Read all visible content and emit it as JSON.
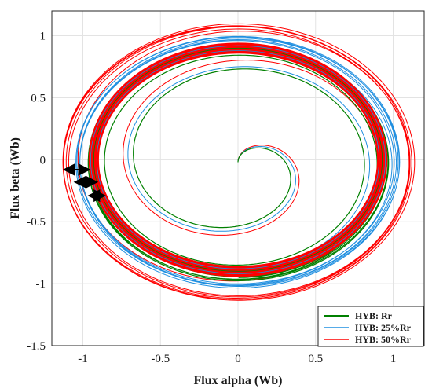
{
  "chart_data": {
    "type": "line",
    "title": "",
    "xlabel": "Flux alpha (Wb)",
    "ylabel": "Flux beta (Wb)",
    "xlim": [
      -1.2,
      1.2
    ],
    "ylim": [
      -1.5,
      1.2
    ],
    "x_ticks": [
      "-1",
      "-0.5",
      "0",
      "0.5",
      "1"
    ],
    "y_ticks": [
      "1",
      "0.5",
      "0",
      "-0.5",
      "-1",
      "-1.5"
    ],
    "grid": true,
    "legend_position": "bottom-right",
    "series": [
      {
        "name": "HYB: Rr",
        "color": "#008000",
        "start": [
          0,
          -0.02
        ],
        "final_radius": [
          0.955,
          0.94
        ],
        "turns": 7.5
      },
      {
        "name": "HYB: 25%Rr",
        "color": "#1f8fe0",
        "start": [
          0,
          -0.02
        ],
        "final_radius": [
          1.03,
          1.0
        ],
        "turns": 7.5
      },
      {
        "name": "HYB: 50%Rr",
        "color": "#ff0000",
        "start": [
          0,
          -0.02
        ],
        "final_radius": [
          1.12,
          1.1
        ],
        "turns": 7.5
      }
    ],
    "steady_state_band": {
      "color": "#ff0000",
      "rx": [
        0.9,
        0.96
      ],
      "ry": [
        0.86,
        0.94
      ]
    },
    "annotations": [
      {
        "type": "double-arrow",
        "x": [
          -1.12,
          -0.96
        ],
        "y": -0.08
      },
      {
        "type": "double-arrow",
        "x": [
          -1.05,
          -0.91
        ],
        "y": -0.18
      },
      {
        "type": "double-arrow",
        "x": [
          -0.96,
          -0.86
        ],
        "y": -0.29
      }
    ]
  }
}
